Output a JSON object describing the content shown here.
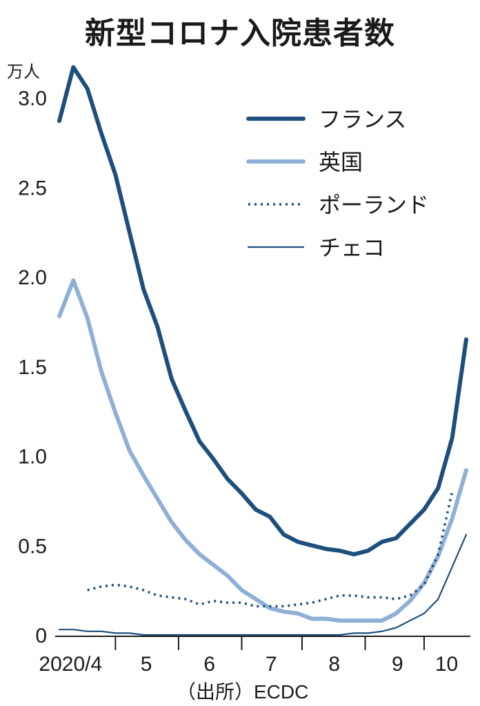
{
  "chart_data": {
    "type": "line",
    "title": "新型コロナ入院患者数",
    "ylabel": "万人",
    "source": "（出所）ECDC",
    "ylim": [
      0,
      3.3
    ],
    "yticks": [
      {
        "value": 0,
        "label": "0"
      },
      {
        "value": 0.5,
        "label": "0.5"
      },
      {
        "value": 1.0,
        "label": "1.0"
      },
      {
        "value": 1.5,
        "label": "1.5"
      },
      {
        "value": 2.0,
        "label": "2.0"
      },
      {
        "value": 2.5,
        "label": "2.5"
      },
      {
        "value": 3.0,
        "label": "3.0"
      }
    ],
    "xlim": [
      0,
      29
    ],
    "xticks": [
      {
        "position": 4,
        "mark": true
      },
      {
        "position": 8.5,
        "mark": true
      },
      {
        "position": 13,
        "mark": true
      },
      {
        "position": 17.3,
        "mark": true
      },
      {
        "position": 21.8,
        "mark": true
      },
      {
        "position": 26,
        "mark": true
      }
    ],
    "xlabels": [
      {
        "position": 0.8,
        "label": "2020/4"
      },
      {
        "position": 6.2,
        "label": "5"
      },
      {
        "position": 10.7,
        "label": "6"
      },
      {
        "position": 15.1,
        "label": "7"
      },
      {
        "position": 19.6,
        "label": "8"
      },
      {
        "position": 24.1,
        "label": "9"
      },
      {
        "position": 27.6,
        "label": "10"
      }
    ],
    "grid": false,
    "legend_position": "top-right",
    "series": [
      {
        "name": "フランス",
        "color": "#1d4f7d",
        "style": "solid",
        "weight": "thick",
        "x": [
          0,
          1,
          2,
          3,
          4,
          5,
          6,
          7,
          8,
          9,
          10,
          11,
          12,
          13,
          14,
          15,
          16,
          17,
          18,
          19,
          20,
          21,
          22,
          23,
          24,
          25,
          26,
          27,
          28,
          29
        ],
        "y": [
          2.87,
          3.17,
          3.05,
          2.8,
          2.57,
          2.25,
          1.93,
          1.72,
          1.43,
          1.25,
          1.08,
          0.98,
          0.87,
          0.79,
          0.7,
          0.66,
          0.56,
          0.52,
          0.5,
          0.48,
          0.47,
          0.45,
          0.47,
          0.52,
          0.54,
          0.62,
          0.7,
          0.82,
          1.1,
          1.65
        ]
      },
      {
        "name": "英国",
        "color": "#8fb0d6",
        "style": "solid",
        "weight": "thick",
        "x": [
          0,
          1,
          2,
          3,
          4,
          5,
          6,
          7,
          8,
          9,
          10,
          11,
          12,
          13,
          14,
          15,
          16,
          17,
          18,
          19,
          20,
          21,
          22,
          23,
          24,
          25,
          26,
          27,
          28,
          29
        ],
        "y": [
          1.78,
          1.98,
          1.77,
          1.47,
          1.24,
          1.03,
          0.89,
          0.76,
          0.63,
          0.53,
          0.45,
          0.39,
          0.33,
          0.25,
          0.2,
          0.15,
          0.13,
          0.12,
          0.09,
          0.09,
          0.08,
          0.08,
          0.08,
          0.08,
          0.12,
          0.19,
          0.29,
          0.44,
          0.65,
          0.92
        ]
      },
      {
        "name": "ポーランド",
        "color": "#1d4f7d",
        "style": "dotted",
        "weight": "medium",
        "x": [
          2,
          3,
          4,
          5,
          6,
          7,
          8,
          9,
          10,
          11,
          12,
          13,
          14,
          15,
          16,
          17,
          18,
          19,
          20,
          21,
          22,
          23,
          24,
          25,
          26,
          27,
          28
        ],
        "y": [
          0.25,
          0.27,
          0.28,
          0.27,
          0.25,
          0.22,
          0.21,
          0.2,
          0.17,
          0.19,
          0.18,
          0.18,
          0.16,
          0.16,
          0.16,
          0.17,
          0.18,
          0.2,
          0.22,
          0.22,
          0.21,
          0.21,
          0.2,
          0.22,
          0.28,
          0.45,
          0.8
        ]
      },
      {
        "name": "チェコ",
        "color": "#1d4f7d",
        "style": "solid",
        "weight": "thin",
        "x": [
          0,
          1,
          2,
          3,
          4,
          5,
          6,
          7,
          8,
          9,
          10,
          11,
          12,
          13,
          14,
          15,
          16,
          17,
          18,
          19,
          20,
          21,
          22,
          23,
          24,
          25,
          26,
          27,
          28,
          29
        ],
        "y": [
          0.03,
          0.03,
          0.02,
          0.02,
          0.01,
          0.01,
          0.0,
          0.0,
          0.0,
          0.0,
          0.0,
          0.0,
          0.0,
          0.0,
          0.0,
          0.0,
          0.0,
          0.0,
          0.0,
          0.0,
          0.0,
          0.01,
          0.01,
          0.02,
          0.04,
          0.08,
          0.12,
          0.2,
          0.38,
          0.56
        ]
      }
    ]
  }
}
